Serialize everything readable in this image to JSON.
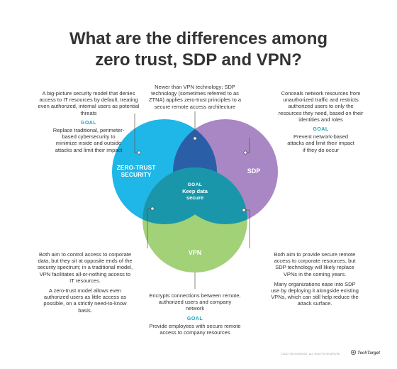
{
  "title": {
    "line1": "What are the differences among",
    "line2": "zero trust, SDP and VPN?"
  },
  "colors": {
    "zero_trust": "#1fb6e8",
    "sdp": "#a887c4",
    "vpn": "#a2d178",
    "zt_sdp_overlap": "#2a5fa8",
    "center": "#1a96aa",
    "goal_text": "#1aa6b7"
  },
  "circles": {
    "zero_trust": "ZERO-TRUST\nSECURITY",
    "sdp": "SDP",
    "vpn": "VPN",
    "center_goal": "GOAL",
    "center_text": "Keep data\nsecure"
  },
  "zero_trust_box": {
    "description": "A big-picture security model that denies access to IT resources by default, treating even authorized, internal users as potential threats",
    "goal_label": "GOAL",
    "goal": "Replace traditional, perimeter-based cybersecurity to minimize inside and outside attacks and limit their impact"
  },
  "zt_sdp_box": {
    "description": "Newer than VPN technology; SDP technology (sometimes referred to as ZTNA) applies zero-trust principles to a secure remote access architecture"
  },
  "sdp_box": {
    "description": "Conceals network resources from unauthorized traffic and restricts authorized users to only the resources they need, based on their identities and roles",
    "goal_label": "GOAL",
    "goal": "Prevent network-based attacks and limit their impact if they do occur"
  },
  "zt_vpn_box": {
    "p1": "Both aim to control access to corporate data, but they sit at opposite ends of the security spectrum; in a traditional model, VPN facilitates all-or-nothing access to IT resources.",
    "p2": "A zero-trust model allows even authorized users as little access as possible, on a strictly need-to-know basis."
  },
  "sdp_vpn_box": {
    "p1": "Both aim to provide secure remote access to corporate resources, but SDP technology will likely replace VPNs in the coming years.",
    "p2": "Many organizations ease into SDP use by deploying it alongside existing VPNs, which can still help reduce the attack surface."
  },
  "vpn_box": {
    "description": "Encrypts connections between remote, authorized users and company network",
    "goal_label": "GOAL",
    "goal": "Provide employees with secure remote access to company resources"
  },
  "footer": {
    "copyright": "©2022 TECHTARGET. ALL RIGHTS RESERVED",
    "brand": "TechTarget",
    "brand_icon": "techtarget-logo-icon"
  }
}
